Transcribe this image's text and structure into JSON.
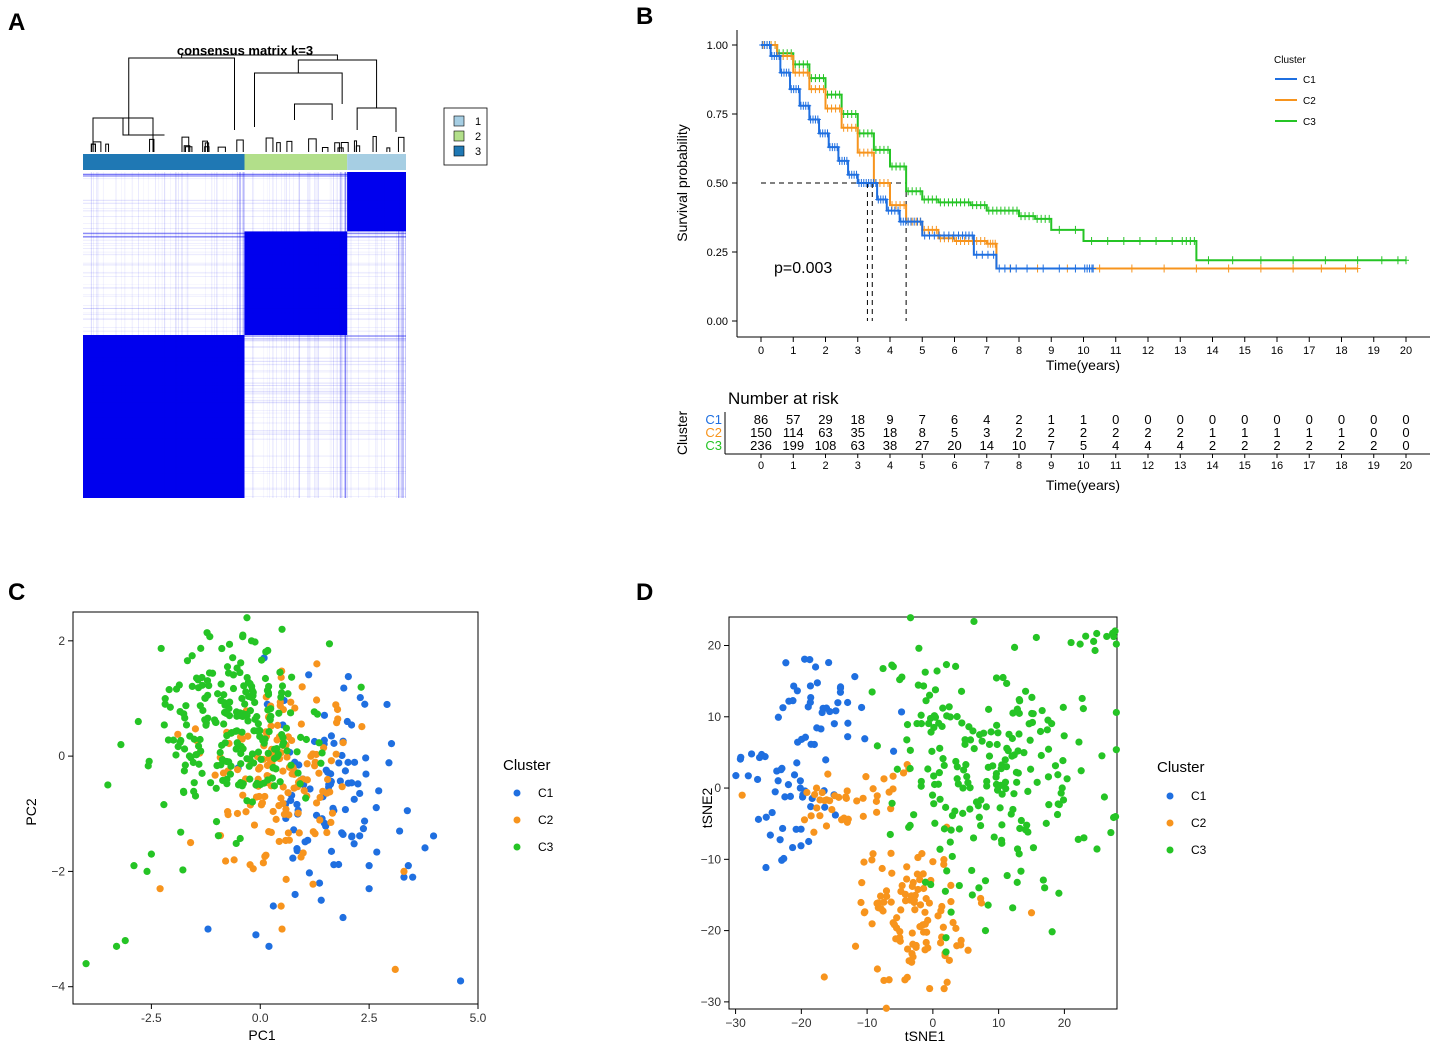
{
  "panel_labels": [
    "A",
    "B",
    "C",
    "D"
  ],
  "colors": {
    "C1": "#1f6fe0",
    "C2": "#f7941d",
    "C3": "#25c425",
    "consensus": "#0000ee",
    "bar1": "#a6cee3",
    "bar2": "#b2df8a",
    "bar3": "#1f78b4"
  },
  "chart_data": [
    {
      "panel": "A",
      "type": "heatmap",
      "title": "consensus matrix k=3",
      "legend": [
        "1",
        "2",
        "3"
      ],
      "blocks": [
        {
          "cluster": "3",
          "size": 236
        },
        {
          "cluster": "2",
          "size": 150
        },
        {
          "cluster": "1",
          "size": 86
        }
      ]
    },
    {
      "panel": "B",
      "type": "line",
      "ylabel": "Survival probability",
      "xlabel": "Time(years)",
      "legend_title": "Cluster",
      "legend_items": [
        "C1",
        "C2",
        "C3"
      ],
      "annotation": "p=0.003",
      "xlim": [
        0,
        20
      ],
      "ylim": [
        0,
        1
      ],
      "x_ticks": [
        "0",
        "1",
        "2",
        "3",
        "4",
        "5",
        "6",
        "7",
        "8",
        "9",
        "10",
        "11",
        "12",
        "13",
        "14",
        "15",
        "16",
        "17",
        "18",
        "19",
        "20"
      ],
      "y_ticks": [
        "0.00",
        "0.25",
        "0.50",
        "0.75",
        "1.00"
      ],
      "median_survival": {
        "C1": 3.3,
        "C2": 3.45,
        "C3": 4.5
      },
      "series": [
        {
          "name": "C1",
          "x": [
            0,
            0.3,
            0.6,
            0.9,
            1.2,
            1.5,
            1.8,
            2.1,
            2.4,
            2.7,
            3.0,
            3.3,
            3.6,
            3.9,
            4.3,
            4.6,
            5.0,
            5.6,
            6.2,
            6.6,
            7.3,
            8.0,
            9.0,
            10.0,
            10.3
          ],
          "y": [
            1.0,
            0.96,
            0.9,
            0.84,
            0.78,
            0.73,
            0.68,
            0.63,
            0.58,
            0.53,
            0.5,
            0.5,
            0.44,
            0.4,
            0.36,
            0.36,
            0.31,
            0.31,
            0.31,
            0.24,
            0.19,
            0.19,
            0.19,
            0.19,
            0.19
          ]
        },
        {
          "name": "C2",
          "x": [
            0,
            0.5,
            1.0,
            1.5,
            2.0,
            2.5,
            3.0,
            3.5,
            4.0,
            4.5,
            5.0,
            5.5,
            6.0,
            6.5,
            7.0,
            7.3,
            9.0,
            11.0,
            13.0,
            15.0,
            17.0,
            18.5
          ],
          "y": [
            1.0,
            0.96,
            0.9,
            0.84,
            0.77,
            0.7,
            0.61,
            0.5,
            0.42,
            0.36,
            0.33,
            0.3,
            0.29,
            0.29,
            0.28,
            0.19,
            0.19,
            0.19,
            0.19,
            0.19,
            0.19,
            0.19
          ]
        },
        {
          "name": "C3",
          "x": [
            0,
            0.5,
            1.0,
            1.5,
            2.0,
            2.5,
            3.0,
            3.5,
            4.0,
            4.5,
            5.0,
            5.5,
            6.0,
            6.5,
            7.0,
            7.5,
            8.0,
            8.5,
            9.0,
            10.0,
            11.0,
            12.0,
            13.0,
            13.5,
            15.0,
            17.0,
            19.0,
            20.0
          ],
          "y": [
            1.0,
            0.97,
            0.93,
            0.88,
            0.82,
            0.75,
            0.68,
            0.62,
            0.56,
            0.47,
            0.44,
            0.43,
            0.43,
            0.42,
            0.4,
            0.4,
            0.38,
            0.37,
            0.33,
            0.29,
            0.29,
            0.29,
            0.29,
            0.22,
            0.22,
            0.22,
            0.22,
            0.22
          ]
        }
      ]
    },
    {
      "panel": "B-risk",
      "type": "table",
      "title": "Number at risk",
      "ylabel": "Cluster",
      "xlabel": "Time(years)",
      "x_ticks": [
        "0",
        "1",
        "2",
        "3",
        "4",
        "5",
        "6",
        "7",
        "8",
        "9",
        "10",
        "11",
        "12",
        "13",
        "14",
        "15",
        "16",
        "17",
        "18",
        "19",
        "20"
      ],
      "rows": [
        {
          "name": "C1",
          "values": [
            "86",
            "57",
            "29",
            "18",
            "9",
            "7",
            "6",
            "4",
            "2",
            "1",
            "1",
            "0",
            "0",
            "0",
            "0",
            "0",
            "0",
            "0",
            "0",
            "0",
            "0"
          ]
        },
        {
          "name": "C2",
          "values": [
            "150",
            "114",
            "63",
            "35",
            "18",
            "8",
            "5",
            "3",
            "2",
            "2",
            "2",
            "2",
            "2",
            "2",
            "1",
            "1",
            "1",
            "1",
            "1",
            "0",
            "0"
          ]
        },
        {
          "name": "C3",
          "values": [
            "236",
            "199",
            "108",
            "63",
            "38",
            "27",
            "20",
            "14",
            "10",
            "7",
            "5",
            "4",
            "4",
            "4",
            "2",
            "2",
            "2",
            "2",
            "2",
            "2",
            "0"
          ]
        }
      ]
    },
    {
      "panel": "C",
      "type": "scatter",
      "xlabel": "PC1",
      "ylabel": "PC2",
      "legend_title": "Cluster",
      "legend_items": [
        "C1",
        "C2",
        "C3"
      ],
      "xlim": [
        -4.3,
        5.0
      ],
      "ylim": [
        -4.3,
        2.5
      ],
      "x_ticks": [
        -2.5,
        0.0,
        2.5,
        5.0
      ],
      "x_tick_labels": [
        "-2.5",
        "0.0",
        "2.5",
        "5.0"
      ],
      "y_ticks": [
        -4,
        -2,
        0,
        2
      ],
      "y_tick_labels": [
        "−4",
        "−2",
        "0",
        "2"
      ],
      "series": [
        {
          "name": "C1",
          "clusters": [
            {
              "cx": 1.6,
              "cy": -0.6,
              "sx": 0.85,
              "sy": 0.75,
              "n": 86
            }
          ],
          "extra": [
            [
              4.6,
              -3.9
            ],
            [
              3.4,
              -1.9
            ],
            [
              3.3,
              -2.1
            ],
            [
              3.2,
              -1.3
            ],
            [
              -1.2,
              -3.0
            ],
            [
              0.2,
              -3.3
            ],
            [
              -0.1,
              -3.1
            ],
            [
              0.3,
              -2.6
            ],
            [
              2.5,
              -2.3
            ],
            [
              2.5,
              -1.9
            ],
            [
              3.5,
              -2.1
            ],
            [
              2.1,
              -1.4
            ],
            [
              1.9,
              -2.8
            ],
            [
              1.4,
              -2.5
            ],
            [
              0.8,
              -2.4
            ],
            [
              2.4,
              0.9
            ],
            [
              2.0,
              0.6
            ]
          ]
        },
        {
          "name": "C2",
          "clusters": [
            {
              "cx": 0.4,
              "cy": -0.4,
              "sx": 0.85,
              "sy": 0.75,
              "n": 150
            }
          ],
          "extra": [
            [
              3.1,
              -3.7
            ],
            [
              0.5,
              -3.0
            ],
            [
              -2.3,
              -2.3
            ],
            [
              3.3,
              -2.0
            ],
            [
              1.3,
              1.6
            ],
            [
              -0.6,
              -1.8
            ],
            [
              -1.6,
              -1.5
            ]
          ]
        },
        {
          "name": "C3",
          "clusters": [
            {
              "cx": -0.5,
              "cy": 0.5,
              "sx": 0.85,
              "sy": 0.75,
              "n": 236
            }
          ],
          "extra": [
            [
              -4.0,
              -3.6
            ],
            [
              -3.3,
              -3.3
            ],
            [
              -3.1,
              -3.2
            ],
            [
              -3.5,
              -0.5
            ],
            [
              -3.2,
              0.2
            ],
            [
              -2.8,
              0.6
            ],
            [
              -2.9,
              -1.9
            ],
            [
              -2.6,
              -2.0
            ],
            [
              -2.5,
              -1.7
            ],
            [
              -0.4,
              2.1
            ],
            [
              0.5,
              2.2
            ],
            [
              -0.2,
              2.0
            ]
          ]
        }
      ]
    },
    {
      "panel": "D",
      "type": "scatter",
      "xlabel": "tSNE1",
      "ylabel": "tSNE2",
      "legend_title": "Cluster",
      "legend_items": [
        "C1",
        "C2",
        "C3"
      ],
      "xlim": [
        -31,
        28
      ],
      "ylim": [
        -31,
        24
      ],
      "x_ticks": [
        -30,
        -20,
        -10,
        0,
        10,
        20
      ],
      "x_tick_labels": [
        "−30",
        "−20",
        "−10",
        "0",
        "10",
        "20"
      ],
      "y_ticks": [
        -30,
        -20,
        -10,
        0,
        10,
        20
      ],
      "y_tick_labels": [
        "−30",
        "−20",
        "−10",
        "0",
        "10",
        "20"
      ],
      "series": [
        {
          "name": "C1",
          "clusters": [
            {
              "cx": -17,
              "cy": 12,
              "sx": 3.5,
              "sy": 3.5,
              "n": 38
            },
            {
              "cx": -22,
              "cy": -2,
              "sx": 3,
              "sy": 4,
              "n": 40
            },
            {
              "cx": -28,
              "cy": 2,
              "sx": 1.5,
              "sy": 2,
              "n": 8
            }
          ],
          "extra": []
        },
        {
          "name": "C2",
          "clusters": [
            {
              "cx": -3,
              "cy": -18,
              "sx": 4.5,
              "sy": 5,
              "n": 110
            },
            {
              "cx": -15,
              "cy": -3,
              "sx": 3,
              "sy": 2.5,
              "n": 30
            },
            {
              "cx": -5,
              "cy": 0,
              "sx": 2,
              "sy": 2,
              "n": 10
            }
          ],
          "extra": [
            [
              15,
              -17.5
            ],
            [
              -29,
              -1
            ]
          ]
        },
        {
          "name": "C3",
          "clusters": [
            {
              "cx": 10,
              "cy": 2,
              "sx": 8,
              "sy": 8,
              "n": 200
            },
            {
              "cx": -3,
              "cy": 15,
              "sx": 4,
              "sy": 4,
              "n": 22
            },
            {
              "cx": 25,
              "cy": 21,
              "sx": 1.5,
              "sy": 1.2,
              "n": 10
            }
          ],
          "extra": [
            [
              7,
              -14
            ],
            [
              8,
              -13
            ],
            [
              6,
              -15
            ],
            [
              8,
              -20
            ],
            [
              17,
              -14
            ],
            [
              2,
              -21
            ],
            [
              2,
              -23
            ]
          ]
        }
      ]
    }
  ]
}
